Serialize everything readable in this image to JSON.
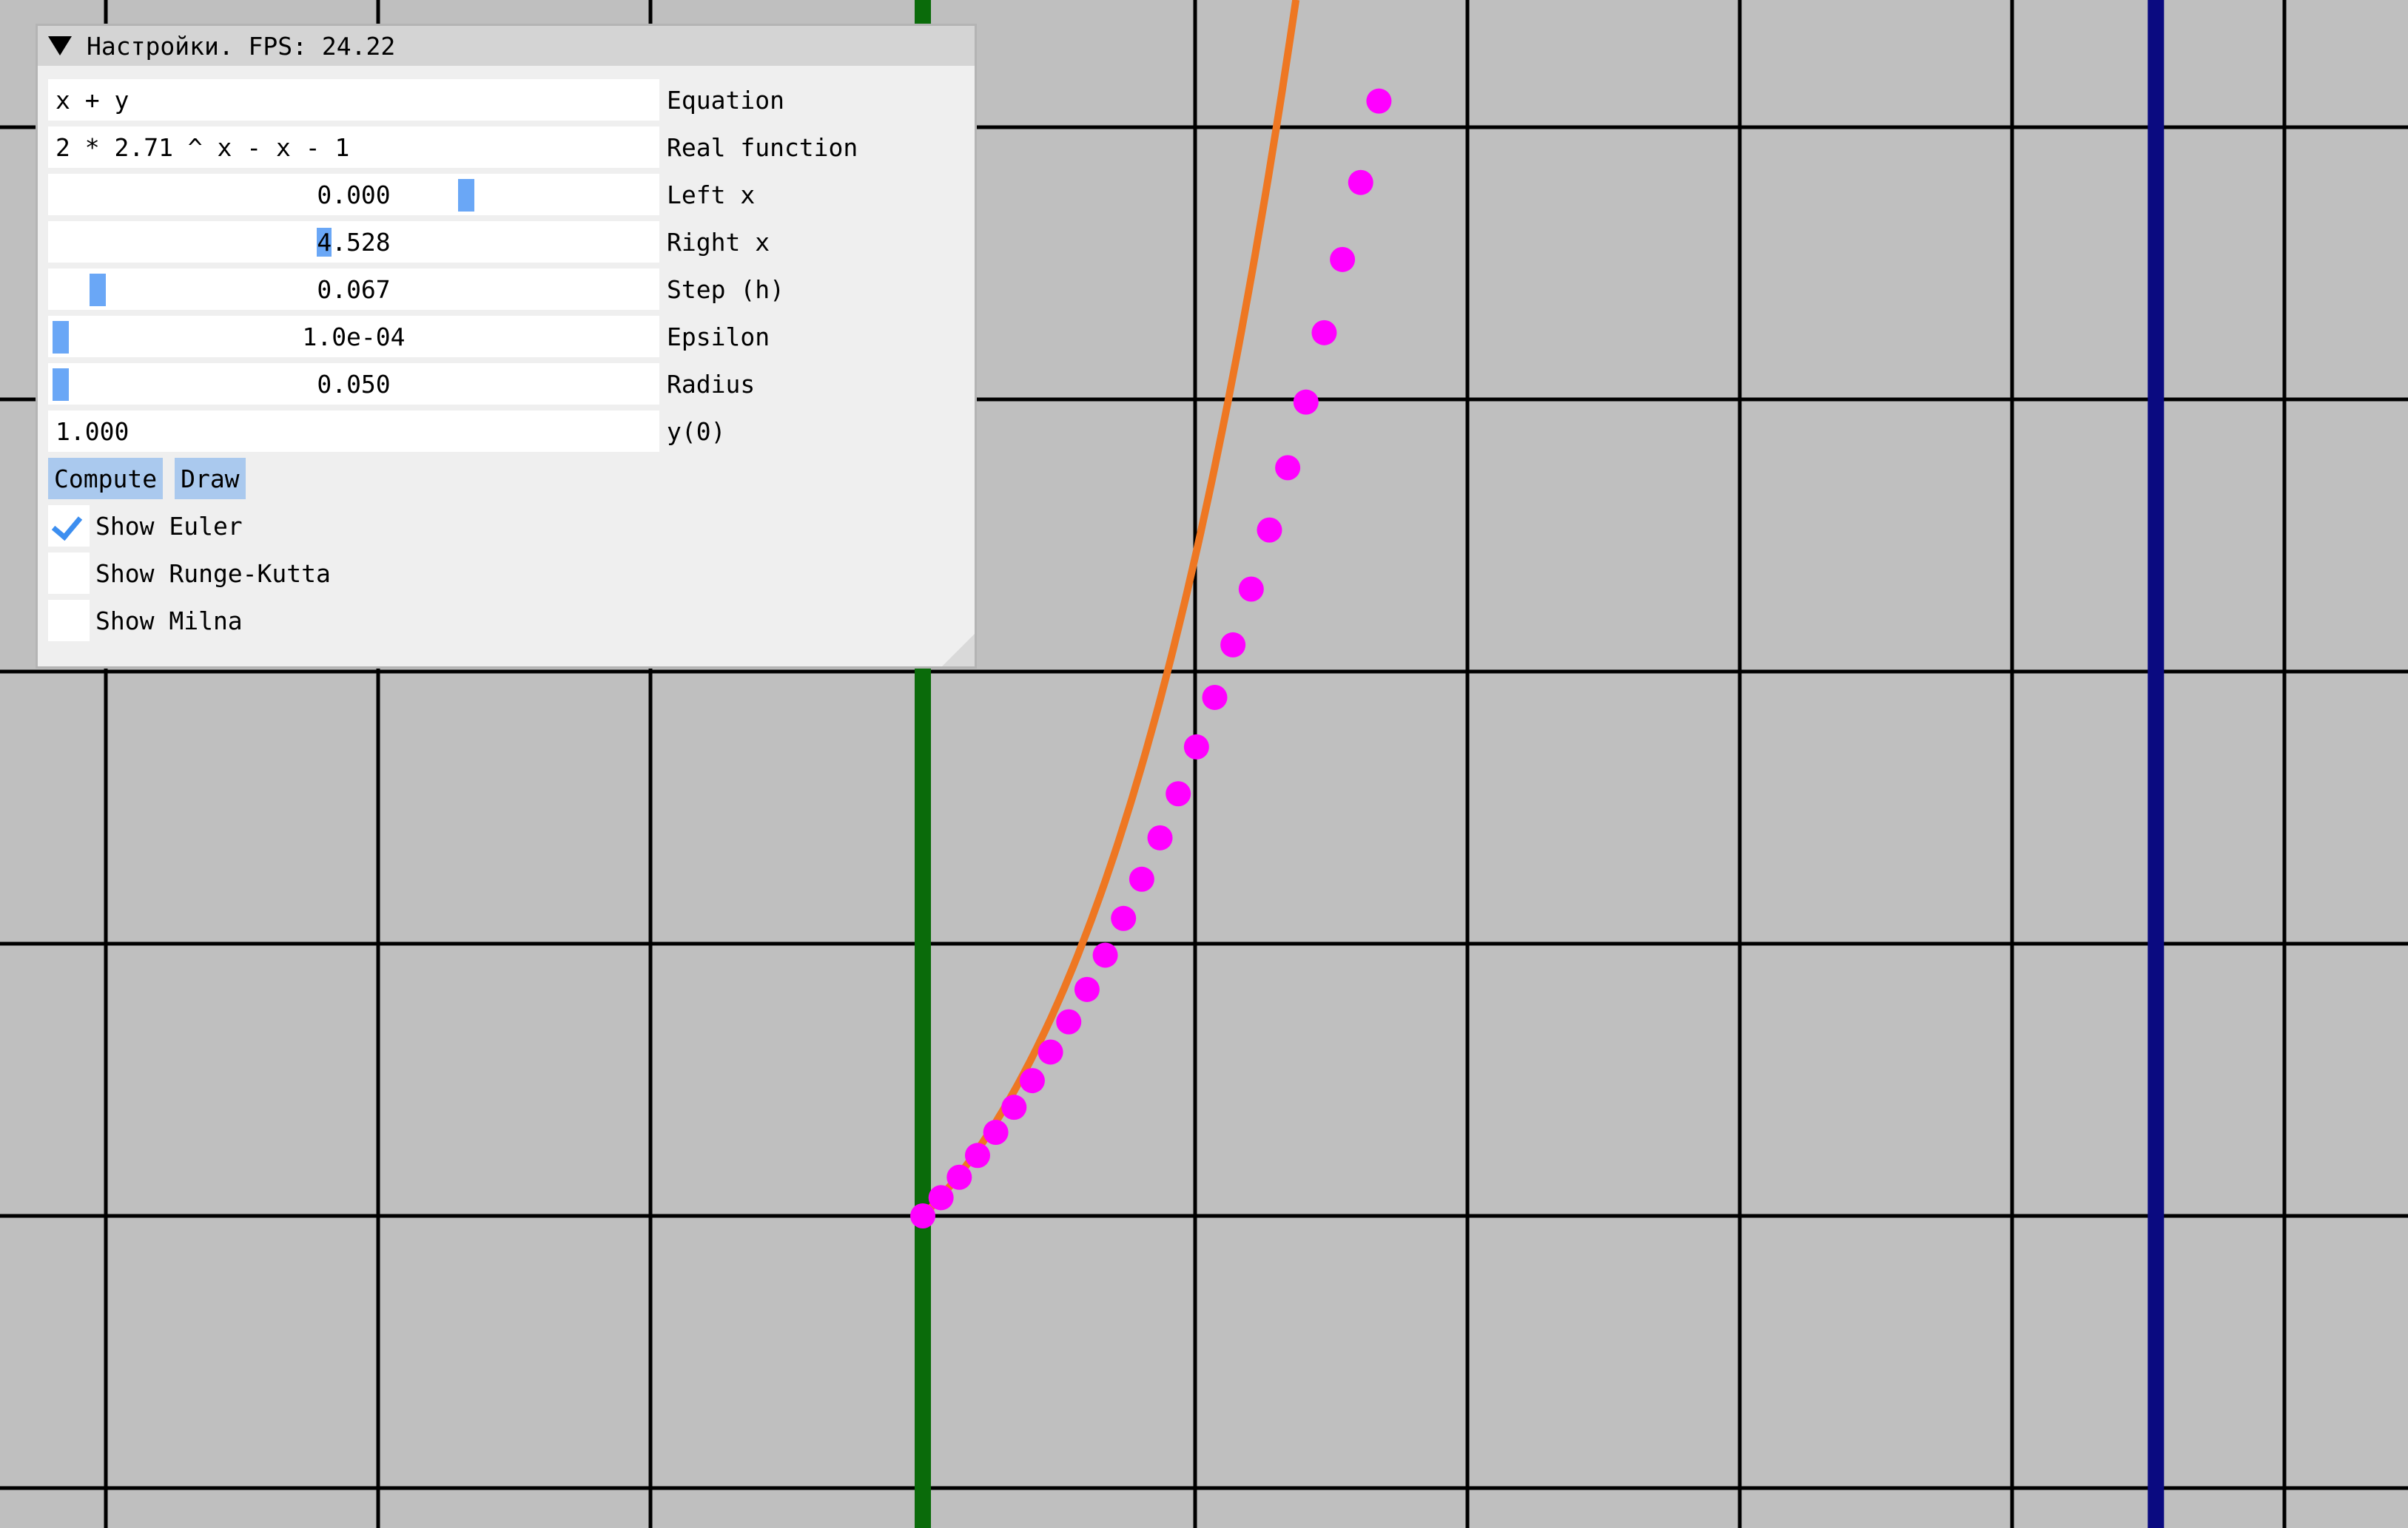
{
  "window": {
    "title": "Настройки. FPS: 24.22"
  },
  "fields": {
    "equation": {
      "value": "x + y",
      "label": "Equation"
    },
    "real_function": {
      "value": "2 * 2.71 ^ x - x - 1",
      "label": "Real function"
    },
    "left_x": {
      "value": "0.000",
      "label": "Left x"
    },
    "right_x": {
      "value_head": "4",
      "value_tail": ".528",
      "label": "Right x"
    },
    "step_h": {
      "value": "0.067",
      "label": "Step (h)"
    },
    "epsilon": {
      "value": "1.0e-04",
      "label": "Epsilon"
    },
    "radius": {
      "value": "0.050",
      "label": "Radius"
    },
    "y0": {
      "value": "1.000",
      "label": "y(0)"
    }
  },
  "buttons": {
    "compute": "Compute",
    "draw": "Draw"
  },
  "checkboxes": [
    {
      "label": "Show Euler",
      "checked": true
    },
    {
      "label": "Show Runge-Kutta",
      "checked": false
    },
    {
      "label": "Show Milna",
      "checked": false
    }
  ],
  "colors": {
    "background": "#bfbfbf",
    "grid": "#000000",
    "y_axis": "#0a6b0a",
    "right_bound": "#0a0a80",
    "real_function": "#ee7722",
    "euler_points": "#ff00ff",
    "accent": "#6aa7f6"
  },
  "chart_data": {
    "type": "scatter",
    "x_range": [
      0,
      4.528
    ],
    "step": 0.067,
    "y0": 1.0,
    "series": [
      {
        "kind": "line",
        "function": "2 * 2.71 ^ x - x - 1"
      },
      {
        "kind": "points",
        "name": "Euler",
        "y_values": [
          1.0,
          1.067,
          1.142,
          1.222,
          1.307,
          1.399,
          1.497,
          1.602,
          1.713,
          1.832,
          1.958,
          2.093,
          2.237,
          2.389,
          2.551,
          2.723,
          2.905,
          3.098,
          3.303,
          3.52,
          3.749,
          3.99,
          4.245,
          4.514,
          4.797,
          5.096
        ]
      }
    ]
  }
}
